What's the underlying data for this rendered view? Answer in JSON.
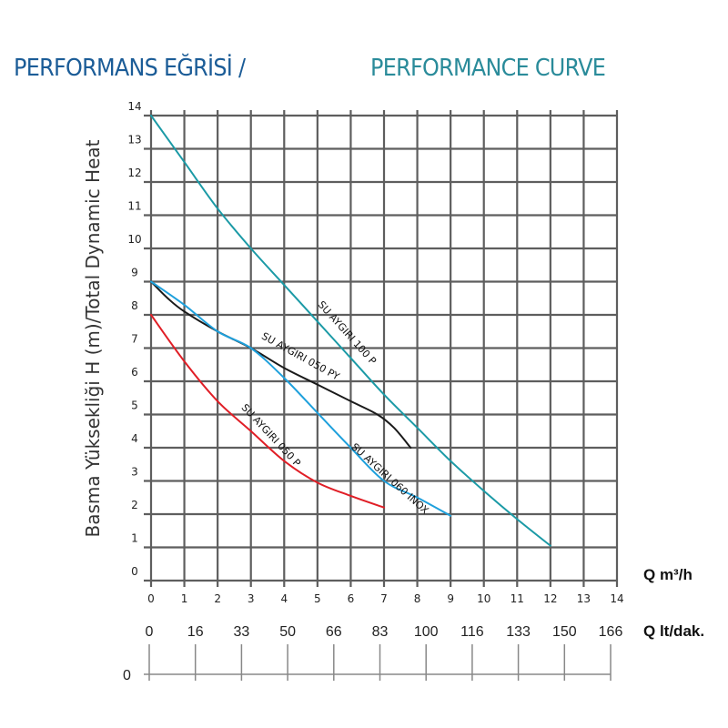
{
  "header": {
    "title_tr": "PERFORMANS EĞRİSİ /",
    "title_en": "PERFORMANCE CURVE"
  },
  "chart_data": {
    "type": "line",
    "title": "PERFORMANS EĞRİSİ / PERFORMANCE CURVE",
    "ylabel": "Basma Yüksekliği H (m)/Total Dynamic Heat",
    "xlabel": "Q m³/h",
    "xlabel_secondary": "Q lt/dak.",
    "xlim": [
      0,
      14
    ],
    "ylim": [
      0,
      14
    ],
    "grid": true,
    "x_ticks": [
      0,
      1,
      2,
      3,
      4,
      5,
      6,
      7,
      8,
      9,
      10,
      11,
      12,
      13,
      14
    ],
    "y_ticks": [
      0,
      1,
      2,
      3,
      4,
      5,
      6,
      7,
      8,
      9,
      10,
      11,
      12,
      13,
      14
    ],
    "secondary_axis": {
      "label": "Q lt/dak.",
      "ticks": [
        0,
        16,
        33,
        50,
        66,
        83,
        100,
        116,
        133,
        150,
        166
      ],
      "zero_label": "0"
    },
    "series": [
      {
        "name": "SU AYGIRI 100 P",
        "color": "#1b9aa6",
        "x": [
          0,
          1,
          2,
          3,
          4,
          5,
          6,
          7,
          8,
          9,
          10,
          11,
          12
        ],
        "y": [
          14,
          12.6,
          11.2,
          10.0,
          8.9,
          7.8,
          6.7,
          5.6,
          4.6,
          3.6,
          2.7,
          1.85,
          1.05
        ]
      },
      {
        "name": "SU AYGIRI 050 PY",
        "color": "#1a1a1a",
        "x": [
          0,
          0.5,
          1,
          2,
          3,
          4,
          5,
          6,
          6.8,
          7.3,
          7.8
        ],
        "y": [
          9.0,
          8.5,
          8.1,
          7.5,
          7.0,
          6.4,
          5.9,
          5.4,
          5.0,
          4.6,
          4.0
        ]
      },
      {
        "name": "SU AYGIRI 060 INOX",
        "color": "#1ea0dc",
        "x": [
          0,
          1,
          2,
          3,
          4,
          5,
          6,
          7,
          8,
          9
        ],
        "y": [
          9.0,
          8.3,
          7.5,
          7.0,
          6.1,
          5.05,
          4.0,
          3.0,
          2.5,
          1.95
        ]
      },
      {
        "name": "SU AYGIRI 050 P",
        "color": "#e01e26",
        "x": [
          0,
          1,
          2,
          3,
          4,
          5,
          6,
          7
        ],
        "y": [
          8.0,
          6.6,
          5.4,
          4.5,
          3.6,
          2.95,
          2.55,
          2.2
        ]
      }
    ]
  }
}
